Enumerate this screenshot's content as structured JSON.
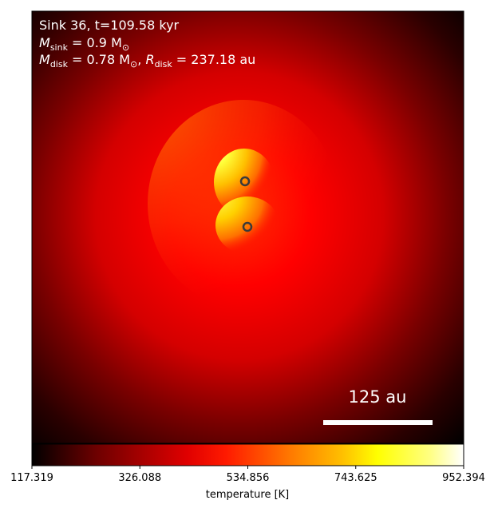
{
  "chart_data": {
    "type": "heatmap",
    "annotations": {
      "line1": "Sink 36, t=109.58 kyr",
      "line2_label": "M",
      "line2_sub": "sink",
      "line2_value": " = 0.9 M",
      "line2_unit_sub": "⊙",
      "line3_m_label": "M",
      "line3_m_sub": "disk",
      "line3_m_value": " = 0.78 M",
      "line3_m_unit_sub": "⊙",
      "line3_sep": ", ",
      "line3_r_label": "R",
      "line3_r_sub": "disk",
      "line3_r_value": " = 237.18 au"
    },
    "scale_bar": {
      "label": "125 au",
      "length_au": 125
    },
    "colorbar": {
      "label": "temperature [K]",
      "min": 117.319,
      "max": 952.394,
      "ticks": [
        "117.319",
        "326.088",
        "534.856",
        "743.625",
        "952.394"
      ],
      "colormap": [
        "#000000",
        "#8b0000",
        "#ff0000",
        "#ff8c00",
        "#ffff00",
        "#ffffff"
      ]
    },
    "sinks": [
      {
        "id": "sink-a",
        "x_frac": 0.0,
        "y_frac": 0.0
      },
      {
        "id": "sink-b",
        "x_frac": 0.0,
        "y_frac": 0.0
      }
    ]
  }
}
